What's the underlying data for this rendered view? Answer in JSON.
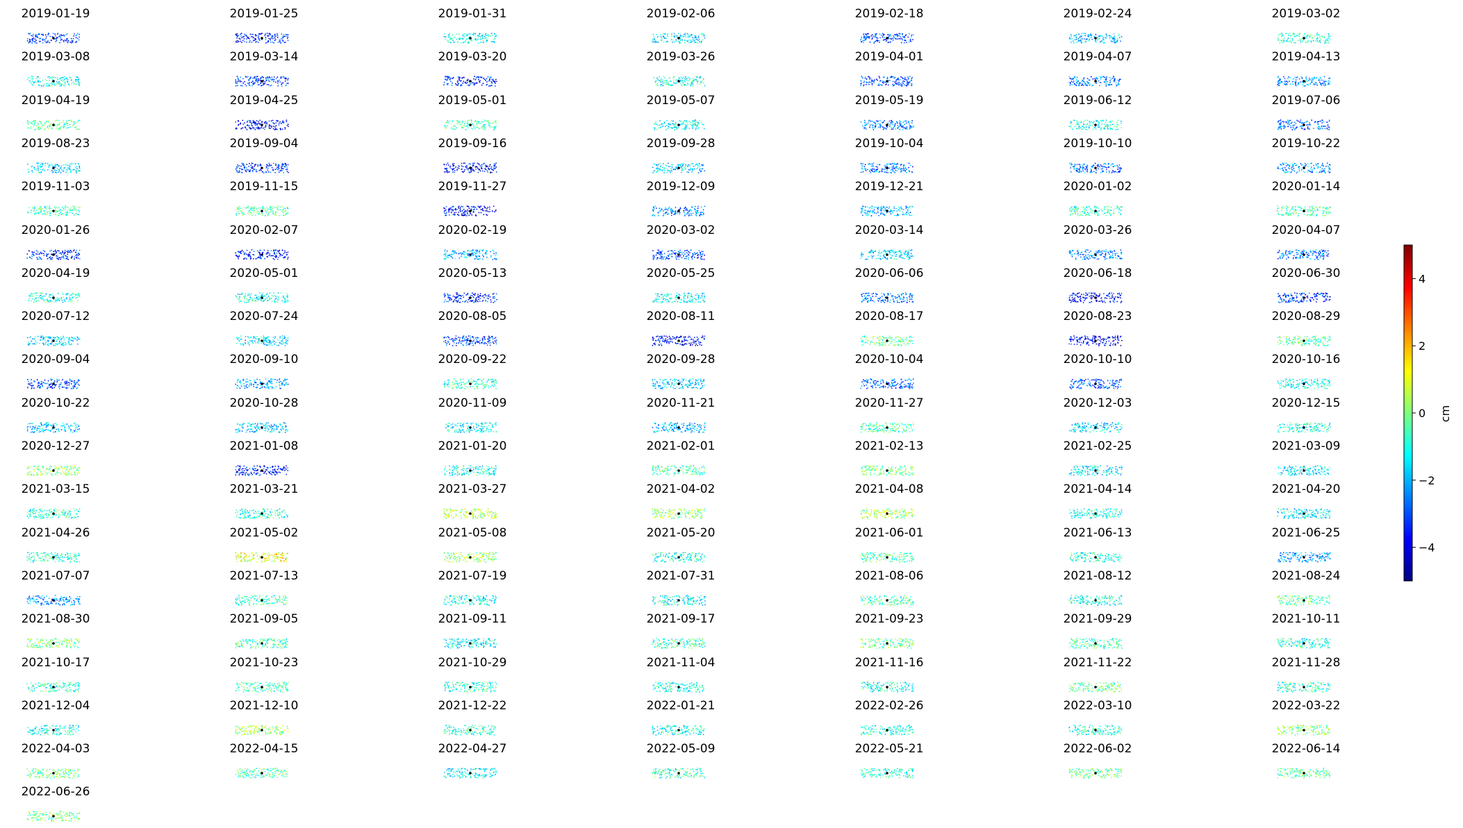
{
  "chart_data": {
    "type": "scatter",
    "layout": {
      "columns": 7
    },
    "colorbar": {
      "label": "cm",
      "min": -5,
      "max": 5,
      "ticks": [
        -4,
        -2,
        0,
        2,
        4
      ],
      "tick_labels": [
        "−4",
        "−2",
        "0",
        "2",
        "4"
      ],
      "colormap": "jet"
    },
    "panels": [
      {
        "date": "2019-01-19",
        "bias": -3.2
      },
      {
        "date": "2019-01-25",
        "bias": -3.4
      },
      {
        "date": "2019-01-31",
        "bias": -1.3
      },
      {
        "date": "2019-02-06",
        "bias": -1.5
      },
      {
        "date": "2019-02-18",
        "bias": -3.0
      },
      {
        "date": "2019-02-24",
        "bias": -1.8
      },
      {
        "date": "2019-03-02",
        "bias": -0.9
      },
      {
        "date": "2019-03-08",
        "bias": -1.1
      },
      {
        "date": "2019-03-14",
        "bias": -3.2
      },
      {
        "date": "2019-03-20",
        "bias": -3.4
      },
      {
        "date": "2019-03-26",
        "bias": -1.0
      },
      {
        "date": "2019-04-01",
        "bias": -2.9
      },
      {
        "date": "2019-04-07",
        "bias": -2.5
      },
      {
        "date": "2019-04-13",
        "bias": -2.3
      },
      {
        "date": "2019-04-19",
        "bias": -0.4
      },
      {
        "date": "2019-04-25",
        "bias": -3.6
      },
      {
        "date": "2019-05-01",
        "bias": -0.6
      },
      {
        "date": "2019-05-07",
        "bias": -1.2
      },
      {
        "date": "2019-05-19",
        "bias": -2.4
      },
      {
        "date": "2019-06-12",
        "bias": -1.0
      },
      {
        "date": "2019-07-06",
        "bias": -2.8
      },
      {
        "date": "2019-08-23",
        "bias": -1.5
      },
      {
        "date": "2019-09-04",
        "bias": -3.3
      },
      {
        "date": "2019-09-16",
        "bias": -3.6
      },
      {
        "date": "2019-09-28",
        "bias": -1.6
      },
      {
        "date": "2019-10-04",
        "bias": -2.6
      },
      {
        "date": "2019-10-10",
        "bias": -2.7
      },
      {
        "date": "2019-10-22",
        "bias": -2.2
      },
      {
        "date": "2019-11-03",
        "bias": -0.7
      },
      {
        "date": "2019-11-15",
        "bias": -0.5
      },
      {
        "date": "2019-11-27",
        "bias": -3.7
      },
      {
        "date": "2019-12-09",
        "bias": -2.4
      },
      {
        "date": "2019-12-21",
        "bias": -2.0
      },
      {
        "date": "2020-01-02",
        "bias": -0.8
      },
      {
        "date": "2020-01-14",
        "bias": -0.5
      },
      {
        "date": "2020-01-26",
        "bias": -3.3
      },
      {
        "date": "2020-02-07",
        "bias": -3.5
      },
      {
        "date": "2020-02-19",
        "bias": -2.0
      },
      {
        "date": "2020-03-02",
        "bias": -3.1
      },
      {
        "date": "2020-03-14",
        "bias": -1.6
      },
      {
        "date": "2020-03-26",
        "bias": -2.4
      },
      {
        "date": "2020-04-07",
        "bias": -2.6
      },
      {
        "date": "2020-04-19",
        "bias": -1.0
      },
      {
        "date": "2020-05-01",
        "bias": -1.1
      },
      {
        "date": "2020-05-13",
        "bias": -3.3
      },
      {
        "date": "2020-05-25",
        "bias": -1.2
      },
      {
        "date": "2020-06-06",
        "bias": -2.6
      },
      {
        "date": "2020-06-18",
        "bias": -3.8
      },
      {
        "date": "2020-06-30",
        "bias": -3.2
      },
      {
        "date": "2020-07-12",
        "bias": -1.6
      },
      {
        "date": "2020-07-24",
        "bias": -1.6
      },
      {
        "date": "2020-08-05",
        "bias": -3.3
      },
      {
        "date": "2020-08-11",
        "bias": -3.8
      },
      {
        "date": "2020-08-17",
        "bias": -0.3
      },
      {
        "date": "2020-08-23",
        "bias": -3.8
      },
      {
        "date": "2020-08-29",
        "bias": -0.4
      },
      {
        "date": "2020-09-04",
        "bias": -3.0
      },
      {
        "date": "2020-09-10",
        "bias": -2.0
      },
      {
        "date": "2020-09-22",
        "bias": -0.8
      },
      {
        "date": "2020-09-28",
        "bias": -1.8
      },
      {
        "date": "2020-10-04",
        "bias": -2.7
      },
      {
        "date": "2020-10-10",
        "bias": -2.8
      },
      {
        "date": "2020-10-16",
        "bias": -1.2
      },
      {
        "date": "2020-10-22",
        "bias": -1.8
      },
      {
        "date": "2020-10-28",
        "bias": -1.8
      },
      {
        "date": "2020-11-09",
        "bias": -1.3
      },
      {
        "date": "2020-11-21",
        "bias": -2.0
      },
      {
        "date": "2020-11-27",
        "bias": -0.6
      },
      {
        "date": "2020-12-03",
        "bias": -1.6
      },
      {
        "date": "2020-12-15",
        "bias": -1.0
      },
      {
        "date": "2020-12-27",
        "bias": 0.1
      },
      {
        "date": "2021-01-08",
        "bias": -3.5
      },
      {
        "date": "2021-01-20",
        "bias": -1.2
      },
      {
        "date": "2021-02-01",
        "bias": -0.6
      },
      {
        "date": "2021-02-13",
        "bias": -0.1
      },
      {
        "date": "2021-02-25",
        "bias": -1.5
      },
      {
        "date": "2021-03-09",
        "bias": -1.5
      },
      {
        "date": "2021-03-15",
        "bias": -0.9
      },
      {
        "date": "2021-03-21",
        "bias": -0.9
      },
      {
        "date": "2021-03-27",
        "bias": 0.5
      },
      {
        "date": "2021-04-02",
        "bias": 0.2
      },
      {
        "date": "2021-04-08",
        "bias": 0.4
      },
      {
        "date": "2021-04-14",
        "bias": -0.9
      },
      {
        "date": "2021-04-20",
        "bias": -1.4
      },
      {
        "date": "2021-04-26",
        "bias": -0.8
      },
      {
        "date": "2021-05-02",
        "bias": 1.2
      },
      {
        "date": "2021-05-08",
        "bias": 0.3
      },
      {
        "date": "2021-05-20",
        "bias": -1.0
      },
      {
        "date": "2021-06-01",
        "bias": -0.4
      },
      {
        "date": "2021-06-13",
        "bias": -0.9
      },
      {
        "date": "2021-06-25",
        "bias": -2.3
      },
      {
        "date": "2021-07-07",
        "bias": -2.2
      },
      {
        "date": "2021-07-13",
        "bias": -0.7
      },
      {
        "date": "2021-07-19",
        "bias": -1.1
      },
      {
        "date": "2021-07-31",
        "bias": -1.3
      },
      {
        "date": "2021-08-06",
        "bias": -0.6
      },
      {
        "date": "2021-08-12",
        "bias": -1.0
      },
      {
        "date": "2021-08-24",
        "bias": -0.3
      },
      {
        "date": "2021-08-30",
        "bias": 0.0
      },
      {
        "date": "2021-09-05",
        "bias": -0.6
      },
      {
        "date": "2021-09-11",
        "bias": -1.3
      },
      {
        "date": "2021-09-17",
        "bias": -0.7
      },
      {
        "date": "2021-09-23",
        "bias": -0.2
      },
      {
        "date": "2021-09-29",
        "bias": -0.6
      },
      {
        "date": "2021-10-11",
        "bias": -0.9
      },
      {
        "date": "2021-10-17",
        "bias": -0.8
      },
      {
        "date": "2021-10-23",
        "bias": -0.6
      },
      {
        "date": "2021-10-29",
        "bias": -0.8
      },
      {
        "date": "2021-11-04",
        "bias": -1.0
      },
      {
        "date": "2021-11-16",
        "bias": -1.1
      },
      {
        "date": "2021-11-22",
        "bias": -0.3
      },
      {
        "date": "2021-11-28",
        "bias": -0.9
      },
      {
        "date": "2021-12-04",
        "bias": -1.2
      },
      {
        "date": "2021-12-10",
        "bias": 0.3
      },
      {
        "date": "2021-12-22",
        "bias": -0.9
      },
      {
        "date": "2022-01-21",
        "bias": -1.0
      },
      {
        "date": "2022-02-26",
        "bias": -1.0
      },
      {
        "date": "2022-03-10",
        "bias": -1.0
      },
      {
        "date": "2022-03-22",
        "bias": 0.0
      },
      {
        "date": "2022-04-03",
        "bias": -0.1
      },
      {
        "date": "2022-04-15",
        "bias": -0.4
      },
      {
        "date": "2022-04-27",
        "bias": -1.2
      },
      {
        "date": "2022-05-09",
        "bias": -0.8
      },
      {
        "date": "2022-05-21",
        "bias": -0.8
      },
      {
        "date": "2022-06-02",
        "bias": -0.2
      },
      {
        "date": "2022-06-14",
        "bias": -0.4
      },
      {
        "date": "2022-06-26",
        "bias": -0.1
      }
    ]
  }
}
